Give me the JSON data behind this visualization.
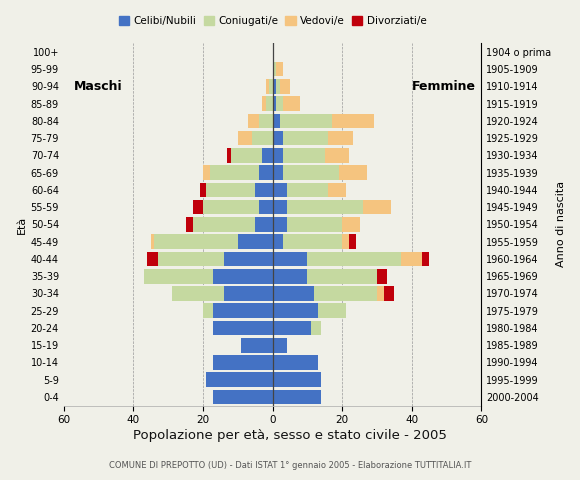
{
  "age_groups": [
    "0-4",
    "5-9",
    "10-14",
    "15-19",
    "20-24",
    "25-29",
    "30-34",
    "35-39",
    "40-44",
    "45-49",
    "50-54",
    "55-59",
    "60-64",
    "65-69",
    "70-74",
    "75-79",
    "80-84",
    "85-89",
    "90-94",
    "95-99",
    "100+"
  ],
  "birth_years": [
    "2000-2004",
    "1995-1999",
    "1990-1994",
    "1985-1989",
    "1980-1984",
    "1975-1979",
    "1970-1974",
    "1965-1969",
    "1960-1964",
    "1955-1959",
    "1950-1954",
    "1945-1949",
    "1940-1944",
    "1935-1939",
    "1930-1934",
    "1925-1929",
    "1920-1924",
    "1915-1919",
    "1910-1914",
    "1905-1909",
    "1904 o prima"
  ],
  "males": {
    "celibinubili": [
      17,
      19,
      17,
      9,
      17,
      17,
      14,
      17,
      14,
      10,
      5,
      4,
      5,
      4,
      3,
      0,
      0,
      0,
      0,
      0,
      0
    ],
    "coniugati": [
      0,
      0,
      0,
      0,
      0,
      3,
      15,
      20,
      19,
      24,
      18,
      16,
      14,
      14,
      9,
      6,
      4,
      2,
      1,
      0,
      0
    ],
    "vedovi": [
      0,
      0,
      0,
      0,
      0,
      0,
      0,
      0,
      0,
      1,
      0,
      0,
      0,
      2,
      0,
      4,
      3,
      1,
      1,
      0,
      0
    ],
    "divorziati": [
      0,
      0,
      0,
      0,
      0,
      0,
      0,
      0,
      3,
      0,
      2,
      3,
      2,
      0,
      1,
      0,
      0,
      0,
      0,
      0,
      0
    ]
  },
  "females": {
    "celibenubili": [
      14,
      14,
      13,
      4,
      11,
      13,
      12,
      10,
      10,
      3,
      4,
      4,
      4,
      3,
      3,
      3,
      2,
      1,
      1,
      0,
      0
    ],
    "coniugate": [
      0,
      0,
      0,
      0,
      3,
      8,
      18,
      20,
      27,
      17,
      16,
      22,
      12,
      16,
      12,
      13,
      15,
      2,
      1,
      1,
      0
    ],
    "vedove": [
      0,
      0,
      0,
      0,
      0,
      0,
      2,
      0,
      6,
      2,
      5,
      8,
      5,
      8,
      7,
      7,
      12,
      5,
      3,
      2,
      0
    ],
    "divorziate": [
      0,
      0,
      0,
      0,
      0,
      0,
      3,
      3,
      2,
      2,
      0,
      0,
      0,
      0,
      0,
      0,
      0,
      0,
      0,
      0,
      0
    ]
  },
  "color_celibinubili": "#4472c4",
  "color_coniugati": "#c5d9a0",
  "color_vedovi": "#f5c47f",
  "color_divorziati": "#c0000b",
  "xlim": 60,
  "title": "Popolazione per età, sesso e stato civile - 2005",
  "subtitle": "COMUNE DI PREPOTTO (UD) - Dati ISTAT 1° gennaio 2005 - Elaborazione TUTTITALIA.IT",
  "ylabel_left": "Età",
  "ylabel_right": "Anno di nascita",
  "label_maschi": "Maschi",
  "label_femmine": "Femmine",
  "legend_labels": [
    "Celibi/Nubili",
    "Coniugati/e",
    "Vedovi/e",
    "Divorziati/e"
  ],
  "bg_color": "#f0f0e8"
}
